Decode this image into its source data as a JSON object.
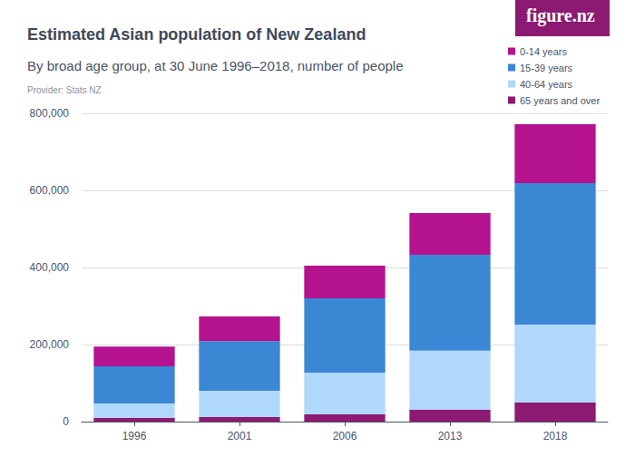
{
  "chart_data": {
    "type": "bar",
    "title": "Estimated Asian population of New Zealand",
    "subtitle": "By broad age group, at 30 June 1996–2018, number of people",
    "source": "Provider: Stats NZ",
    "logo": "figure.nz",
    "categories": [
      "1996",
      "2001",
      "2006",
      "2013",
      "2018"
    ],
    "series": [
      {
        "name": "0-14 years",
        "color": "#b5128f",
        "values": [
          51500,
          64000,
          85000,
          108000,
          153000
        ]
      },
      {
        "name": "15-39 years",
        "color": "#3a87d4",
        "values": [
          96500,
          129000,
          193000,
          249000,
          367000
        ]
      },
      {
        "name": "40-64 years",
        "color": "#b0d8fa",
        "values": [
          37000,
          68000,
          108000,
          153000,
          202000
        ]
      },
      {
        "name": "65 years and over",
        "color": "#8c1a72",
        "values": [
          10000,
          12000,
          19000,
          31000,
          50000
        ]
      }
    ],
    "ylim": [
      0,
      800000
    ],
    "yticks": [
      0,
      {
        "value": 200000,
        "label": "200,000"
      },
      {
        "value": 400000,
        "label": "400,000"
      },
      {
        "value": 600000,
        "label": "600,000"
      },
      {
        "value": 800000,
        "label": "800,000"
      }
    ],
    "stacked": true,
    "grid": true,
    "legend": "top-right"
  }
}
